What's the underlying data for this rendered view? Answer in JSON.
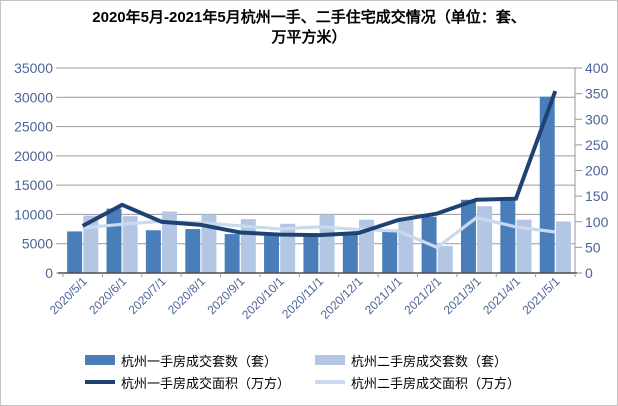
{
  "title": {
    "line1": "2020年5月-2021年5月杭州一手、二手住宅成交情况（单位：套、",
    "line2": "万平方米）"
  },
  "chart_data": {
    "type": "bar",
    "subtype": "combo-bar-line-dual-axis",
    "title": "2020年5月-2021年5月杭州一手、二手住宅成交情况（单位：套、万平方米）",
    "categories": [
      "2020/5/1",
      "2020/6/1",
      "2020/7/1",
      "2020/8/1",
      "2020/9/1",
      "2020/10/1",
      "2020/11/1",
      "2020/12/1",
      "2021/1/1",
      "2021/2/1",
      "2021/3/1",
      "2021/4/1",
      "2021/5/1"
    ],
    "series": [
      {
        "name": "杭州一手房成交套数（套）",
        "type": "bar",
        "axis": "left",
        "color": "#4A7EBB",
        "values": [
          7100,
          11000,
          7300,
          7500,
          6650,
          6400,
          6500,
          6500,
          7250,
          9600,
          12500,
          12400,
          30100
        ]
      },
      {
        "name": "杭州二手房成交套数（套）",
        "type": "bar",
        "axis": "left",
        "color": "#B3C6E3",
        "values": [
          9800,
          9700,
          10500,
          10000,
          9200,
          8400,
          10000,
          9100,
          9500,
          4600,
          11400,
          9100,
          8800
        ]
      },
      {
        "name": "杭州一手房成交面积（万方）",
        "type": "line",
        "axis": "right",
        "color": "#1F4273",
        "values": [
          92,
          133,
          100,
          94,
          79,
          75,
          74,
          78,
          103,
          116,
          143,
          145,
          355
        ]
      },
      {
        "name": "杭州二手房成交面积（万方）",
        "type": "line",
        "axis": "right",
        "color": "#C9D9F0",
        "values": [
          88,
          95,
          101,
          98,
          92,
          86,
          90,
          85,
          82,
          50,
          108,
          90,
          80
        ]
      }
    ],
    "left_axis": {
      "min": 0,
      "max": 35000,
      "step": 5000,
      "tick_labels": [
        "0",
        "5000",
        "10000",
        "15000",
        "20000",
        "25000",
        "30000",
        "35000"
      ]
    },
    "right_axis": {
      "min": 0,
      "max": 400,
      "step": 50,
      "tick_labels": [
        "0",
        "50",
        "100",
        "150",
        "200",
        "250",
        "300",
        "350",
        "400"
      ]
    },
    "grid": true,
    "legend_position": "bottom"
  },
  "colors": {
    "bar_primary": "#4A7EBB",
    "bar_secondary": "#B3C6E3",
    "line_primary": "#1F4273",
    "line_secondary": "#C9D9F0",
    "gridline": "#9a9a9a",
    "axis_line": "#4d4d4d",
    "tick_label": "#4d6596"
  }
}
